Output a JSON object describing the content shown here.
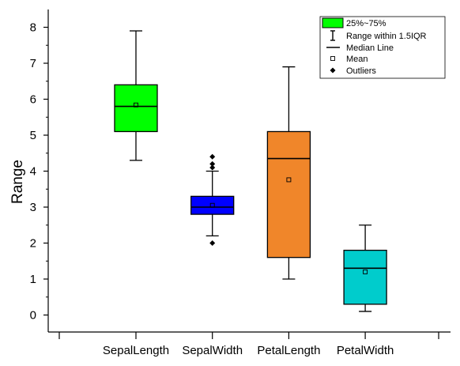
{
  "chart_data": {
    "type": "box",
    "title": "",
    "xlabel": "",
    "ylabel": "Range",
    "ylim": [
      -0.5,
      8.5
    ],
    "yticks": [
      0,
      1,
      2,
      3,
      4,
      5,
      6,
      7,
      8
    ],
    "categories": [
      "SepalLength",
      "SepalWidth",
      "PetalLength",
      "PetalWidth"
    ],
    "boxes": [
      {
        "name": "SepalLength",
        "color": "#00ff00",
        "q1": 5.1,
        "median": 5.8,
        "q3": 6.4,
        "whisker_low": 4.3,
        "whisker_high": 7.9,
        "mean": 5.84,
        "outliers": []
      },
      {
        "name": "SepalWidth",
        "color": "#0000ff",
        "q1": 2.8,
        "median": 3.0,
        "q3": 3.3,
        "whisker_low": 2.2,
        "whisker_high": 4.0,
        "mean": 3.05,
        "outliers": [
          2.0,
          4.1,
          4.2,
          4.4
        ]
      },
      {
        "name": "PetalLength",
        "color": "#f0862a",
        "q1": 1.6,
        "median": 4.35,
        "q3": 5.1,
        "whisker_low": 1.0,
        "whisker_high": 6.9,
        "mean": 3.76,
        "outliers": []
      },
      {
        "name": "PetalWidth",
        "color": "#00cccc",
        "q1": 0.3,
        "median": 1.3,
        "q3": 1.8,
        "whisker_low": 0.1,
        "whisker_high": 2.5,
        "mean": 1.2,
        "outliers": []
      }
    ],
    "legend": {
      "placement": "top-right",
      "items": [
        {
          "type": "box",
          "label": "25%~75%",
          "color": "#00ff00"
        },
        {
          "type": "whisker",
          "label": "Range within 1.5IQR"
        },
        {
          "type": "median",
          "label": "Median Line"
        },
        {
          "type": "mean",
          "label": "Mean"
        },
        {
          "type": "outlier",
          "label": "Outliers"
        }
      ]
    }
  }
}
